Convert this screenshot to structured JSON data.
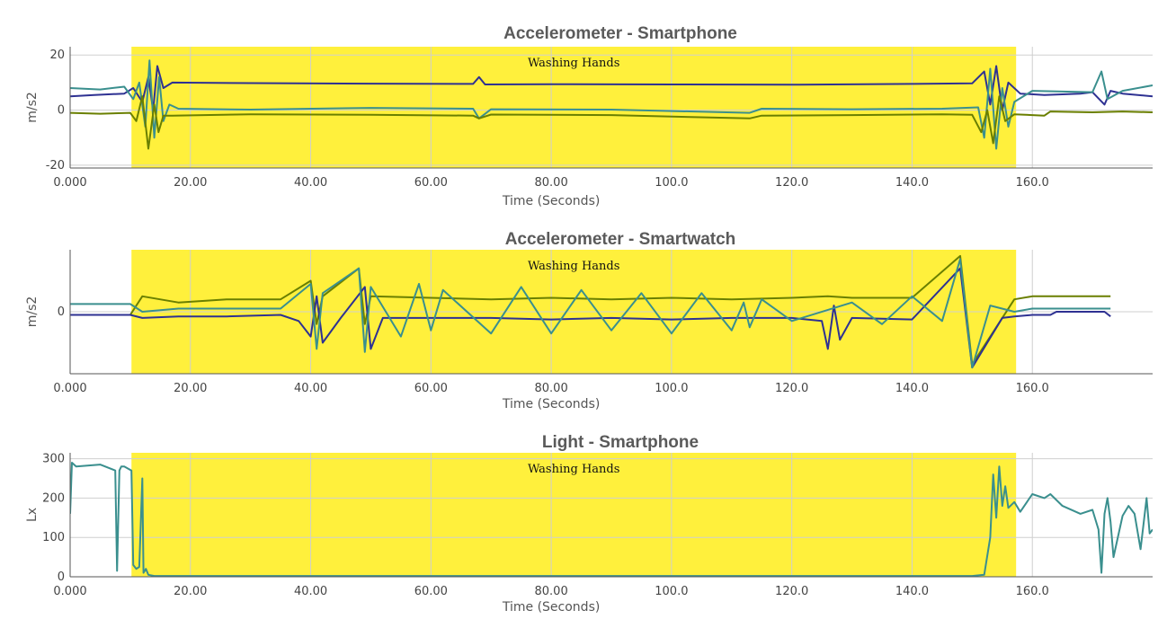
{
  "chart_data": [
    {
      "type": "line",
      "title": "Accelerometer - Smartphone",
      "xlabel": "Time (Seconds)",
      "ylabel": "m/s2",
      "xlim": [
        0,
        180
      ],
      "ylim": [
        -21,
        23
      ],
      "x_ticks": [
        {
          "value": 0,
          "label": "0.000"
        },
        {
          "value": 20,
          "label": "20.00"
        },
        {
          "value": 40,
          "label": "40.00"
        },
        {
          "value": 60,
          "label": "60.00"
        },
        {
          "value": 80,
          "label": "80.00"
        },
        {
          "value": 100,
          "label": "100.0"
        },
        {
          "value": 120,
          "label": "120.0"
        },
        {
          "value": 140,
          "label": "140.0"
        },
        {
          "value": 160,
          "label": "160.0"
        }
      ],
      "y_ticks": [
        {
          "value": 20,
          "label": "20"
        },
        {
          "value": 0,
          "label": "0"
        },
        {
          "value": -20,
          "label": "-20"
        }
      ],
      "grid": true,
      "annotation": {
        "label": "Washing Hands",
        "x_start": 10.2,
        "x_end": 157.3,
        "color": "#fff03c"
      },
      "series": [
        {
          "color": "#2e3192",
          "x": [
            0,
            4,
            9,
            10.5,
            12,
            13,
            13.8,
            14.5,
            15.5,
            17,
            30,
            50,
            67,
            68,
            69,
            80,
            100,
            120,
            140,
            150,
            152,
            153,
            154,
            155,
            156,
            158,
            162,
            168,
            170,
            172,
            173,
            175,
            180
          ],
          "y": [
            5,
            5.5,
            6,
            8,
            3,
            12,
            0,
            16,
            8,
            10,
            9.8,
            9.6,
            9.5,
            12,
            9.3,
            9.4,
            9.3,
            9.2,
            9.5,
            9.7,
            14,
            2,
            16,
            0,
            10,
            6,
            5.5,
            6,
            6.5,
            2,
            7,
            6,
            5
          ]
        },
        {
          "color": "#3a8f8e",
          "x": [
            0,
            5,
            9,
            10.5,
            11.5,
            12.5,
            13.2,
            14,
            14.8,
            15.5,
            16.5,
            18,
            30,
            50,
            67,
            68,
            70,
            90,
            113,
            115,
            130,
            145,
            151,
            152,
            153,
            154,
            155,
            156,
            157,
            160,
            170,
            171.5,
            172.5,
            175,
            180
          ],
          "y": [
            8,
            7.5,
            8.5,
            4,
            10,
            -6,
            18,
            -10,
            12,
            -4,
            2,
            0.5,
            0.2,
            0.8,
            0.5,
            -3,
            0.3,
            0.2,
            -1,
            0.5,
            0.3,
            0.5,
            1,
            -10,
            15,
            -14,
            8,
            -6,
            3,
            7,
            6.5,
            14,
            4,
            7,
            9
          ]
        },
        {
          "color": "#6a7f00",
          "x": [
            0,
            5,
            10,
            11,
            12,
            13,
            14,
            14.7,
            15.5,
            17,
            30,
            50,
            67,
            68,
            70,
            90,
            113,
            115,
            130,
            145,
            150,
            151.5,
            152.5,
            153.5,
            154.5,
            155.5,
            157,
            162,
            163,
            170,
            175,
            180
          ],
          "y": [
            -1,
            -1.3,
            -1,
            -4,
            5,
            -14,
            2,
            -8,
            -2,
            -2,
            -1.5,
            -1.7,
            -2,
            -3,
            -1.6,
            -1.8,
            -3,
            -2,
            -1.8,
            -1.5,
            -1.7,
            -8,
            0,
            -12,
            5,
            -4,
            -1.5,
            -2,
            -0.5,
            -0.8,
            -0.5,
            -0.8
          ]
        }
      ]
    },
    {
      "type": "line",
      "title": "Accelerometer - Smartwatch",
      "xlabel": "Time (Seconds)",
      "ylabel": "m/s2",
      "xlim": [
        0,
        180
      ],
      "ylim": [
        -20,
        20
      ],
      "x_ticks": [
        {
          "value": 0,
          "label": "0.000"
        },
        {
          "value": 20,
          "label": "20.00"
        },
        {
          "value": 40,
          "label": "40.00"
        },
        {
          "value": 60,
          "label": "60.00"
        },
        {
          "value": 80,
          "label": "80.00"
        },
        {
          "value": 100,
          "label": "100.0"
        },
        {
          "value": 120,
          "label": "120.0"
        },
        {
          "value": 140,
          "label": "140.0"
        },
        {
          "value": 160,
          "label": "160.0"
        }
      ],
      "y_ticks": [
        {
          "value": 0,
          "label": "0"
        }
      ],
      "grid": true,
      "annotation": {
        "label": "Washing Hands",
        "x_start": 10.2,
        "x_end": 157.3,
        "color": "#fff03c"
      },
      "series": [
        {
          "color": "#6a7f00",
          "x": [
            0,
            10,
            12,
            18,
            26,
            35,
            40,
            41,
            42,
            48,
            49,
            50,
            60,
            70,
            80,
            90,
            100,
            110,
            120,
            126,
            130,
            140,
            148,
            150,
            157,
            160,
            163,
            164,
            172,
            173
          ],
          "y": [
            -1,
            -1,
            5,
            3,
            4,
            4,
            10,
            -4,
            5,
            14,
            -4,
            5,
            4.5,
            4,
            4.5,
            4,
            4.5,
            4,
            4.5,
            5,
            4.5,
            4.5,
            18,
            -17,
            4,
            5,
            5,
            5,
            5,
            5
          ]
        },
        {
          "color": "#2e3192",
          "x": [
            0,
            10,
            12,
            18,
            26,
            35,
            38,
            40,
            41,
            42,
            45,
            49,
            50,
            52,
            60,
            70,
            80,
            90,
            100,
            110,
            120,
            125,
            126,
            127,
            128,
            130,
            140,
            148,
            150,
            155,
            157,
            160,
            163,
            164,
            172,
            173
          ],
          "y": [
            -1,
            -1,
            -2,
            -1.5,
            -1.5,
            -1,
            -3,
            -8,
            5,
            -10,
            -2,
            8,
            -12,
            -2,
            -2,
            -2,
            -2.5,
            -2,
            -2.5,
            -2,
            -2,
            -3,
            -12,
            2,
            -9,
            -2,
            -2.5,
            14,
            -18,
            -2,
            -1.5,
            -1,
            -1,
            0,
            0,
            -1.5
          ]
        },
        {
          "color": "#3a8f8e",
          "x": [
            0,
            10,
            12,
            18,
            26,
            35,
            40,
            41,
            42,
            48,
            49,
            50,
            55,
            58,
            60,
            62,
            70,
            75,
            80,
            85,
            90,
            95,
            100,
            105,
            110,
            112,
            113,
            115,
            120,
            130,
            135,
            140,
            145,
            148,
            150,
            153,
            157,
            160,
            163,
            164,
            172,
            173
          ],
          "y": [
            2.5,
            2.5,
            0,
            1,
            1,
            1,
            9,
            -12,
            6,
            14,
            -13,
            8,
            -8,
            9,
            -6,
            7,
            -7,
            8,
            -7,
            7,
            -6,
            6,
            -7,
            6,
            -6,
            3,
            -5,
            4,
            -3,
            3,
            -4,
            5,
            -3,
            17,
            -18,
            2,
            0,
            1,
            1,
            1,
            1,
            1
          ]
        }
      ]
    },
    {
      "type": "line",
      "title": "Light - Smartphone",
      "xlabel": "Time (Seconds)",
      "ylabel": "Lx",
      "xlim": [
        0,
        180
      ],
      "ylim": [
        0,
        315
      ],
      "x_ticks": [
        {
          "value": 0,
          "label": "0.000"
        },
        {
          "value": 20,
          "label": "20.00"
        },
        {
          "value": 40,
          "label": "40.00"
        },
        {
          "value": 60,
          "label": "60.00"
        },
        {
          "value": 80,
          "label": "80.00"
        },
        {
          "value": 100,
          "label": "100.0"
        },
        {
          "value": 120,
          "label": "120.0"
        },
        {
          "value": 140,
          "label": "140.0"
        },
        {
          "value": 160,
          "label": "160.0"
        }
      ],
      "y_ticks": [
        {
          "value": 300,
          "label": "300"
        },
        {
          "value": 200,
          "label": "200"
        },
        {
          "value": 100,
          "label": "100"
        },
        {
          "value": 0,
          "label": "0"
        }
      ],
      "grid": true,
      "annotation": {
        "label": "Washing Hands",
        "x_start": 10.2,
        "x_end": 157.3,
        "color": "#fff03c"
      },
      "series": [
        {
          "color": "#3a8f8e",
          "x": [
            0,
            0.3,
            1,
            5,
            7.5,
            7.8,
            8.2,
            8.5,
            9,
            10.2,
            10.5,
            11,
            11.5,
            12,
            12.2,
            12.6,
            13,
            14,
            150,
            152,
            153,
            153.5,
            154,
            154.5,
            155,
            155.5,
            156,
            157,
            158,
            160,
            162,
            163,
            165,
            168,
            170,
            171,
            171.5,
            172,
            172.5,
            173,
            173.5,
            175,
            176,
            177,
            178,
            179,
            179.5,
            180
          ],
          "y": [
            160,
            290,
            280,
            285,
            270,
            15,
            270,
            280,
            280,
            270,
            30,
            20,
            25,
            250,
            10,
            20,
            5,
            2,
            2,
            5,
            100,
            260,
            150,
            280,
            180,
            230,
            175,
            190,
            165,
            210,
            200,
            210,
            180,
            160,
            170,
            120,
            10,
            160,
            200,
            140,
            50,
            155,
            180,
            160,
            70,
            200,
            110,
            120
          ]
        }
      ]
    }
  ]
}
